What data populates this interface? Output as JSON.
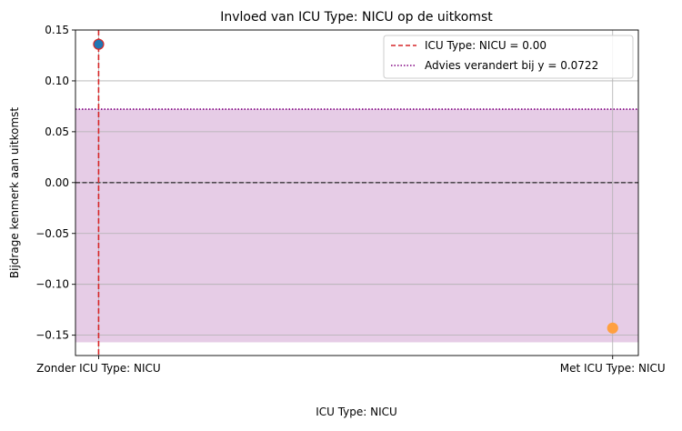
{
  "chart_data": {
    "type": "scatter",
    "title": "Invloed van ICU Type: NICU op de uitkomst",
    "xlabel": "ICU Type: NICU",
    "ylabel": "Bijdrage kenmerk aan uitkomst",
    "categories": [
      "Zonder ICU Type: NICU",
      "Met ICU Type: NICU"
    ],
    "x": [
      0,
      1
    ],
    "xlim": [
      -0.045,
      1.05
    ],
    "ylim": [
      -0.17,
      0.15
    ],
    "yticks": [
      -0.15,
      -0.1,
      -0.05,
      0.0,
      0.05,
      0.1,
      0.15
    ],
    "ytick_labels": [
      "−0.15",
      "−0.10",
      "−0.05",
      "0.00",
      "0.05",
      "0.10",
      "0.15"
    ],
    "grid": true,
    "points": [
      {
        "x": 0,
        "y": 0.136,
        "color": "#1f77b4",
        "edge": "#d62728"
      },
      {
        "x": 1,
        "y": -0.143,
        "color": "#ffa040",
        "edge": "#ffa040"
      }
    ],
    "vline": {
      "x": 0,
      "color": "#d62728",
      "style": "dashed",
      "label": "ICU Type: NICU = 0.00"
    },
    "hline_threshold": {
      "y": 0.0722,
      "color": "#800080",
      "style": "dotted",
      "label": "Advies verandert bij y = 0.0722"
    },
    "hline_zero": {
      "y": 0,
      "color": "#000000",
      "style": "dashed"
    },
    "shaded_region": {
      "y_from": -0.157,
      "y_to": 0.0722,
      "color": "#800080",
      "opacity": 0.2
    },
    "legend": {
      "placement": "top-right",
      "entries": [
        "ICU Type: NICU = 0.00",
        "Advies verandert bij y = 0.0722"
      ]
    }
  }
}
